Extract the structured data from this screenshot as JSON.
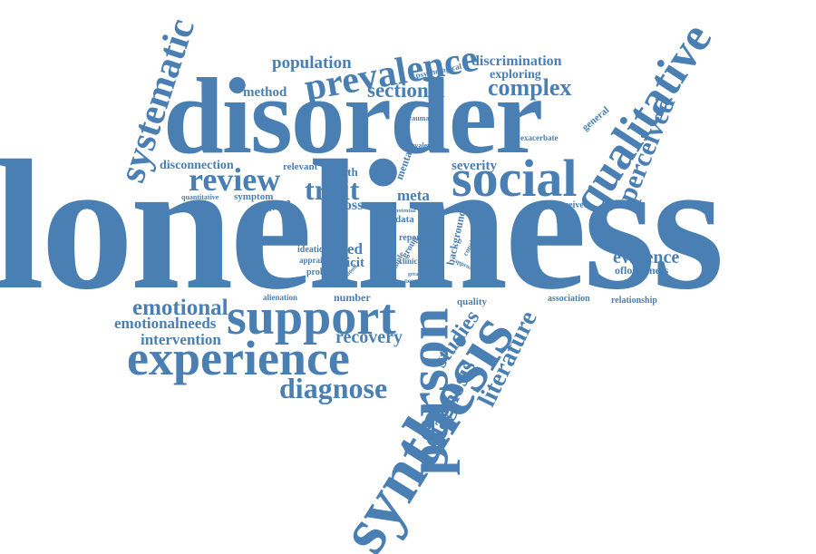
{
  "theme": {
    "word_color": "#4a7fb3",
    "background": "#ffffff"
  },
  "words": [
    "loneliness",
    "disorder",
    "synthesis",
    "person",
    "support",
    "experience",
    "qualitative",
    "social",
    "systematic",
    "prevalence",
    "review",
    "trait",
    "diagnose",
    "perceived",
    "literature",
    "studies",
    "diagnosis",
    "sectional",
    "complex",
    "population",
    "discrimination",
    "exploring",
    "method",
    "emotional",
    "emotionalneeds",
    "intervention",
    "recovery",
    "evidence",
    "ofloneliness",
    "disconnection",
    "relevant",
    "health",
    "severity",
    "symptom",
    "human",
    "cross",
    "meta",
    "need",
    "deficit",
    "ideation",
    "appraisal",
    "problem",
    "number",
    "alienation",
    "quality",
    "association",
    "relationship",
    "received",
    "general",
    "exacerbate",
    "traumatic",
    "prevalent",
    "mental",
    "psychological",
    "quantitative",
    "background",
    "report",
    "clinical",
    "data",
    "group",
    "sample",
    "negative",
    "childhood",
    "potential",
    "approach",
    "conclusion",
    "greater"
  ]
}
